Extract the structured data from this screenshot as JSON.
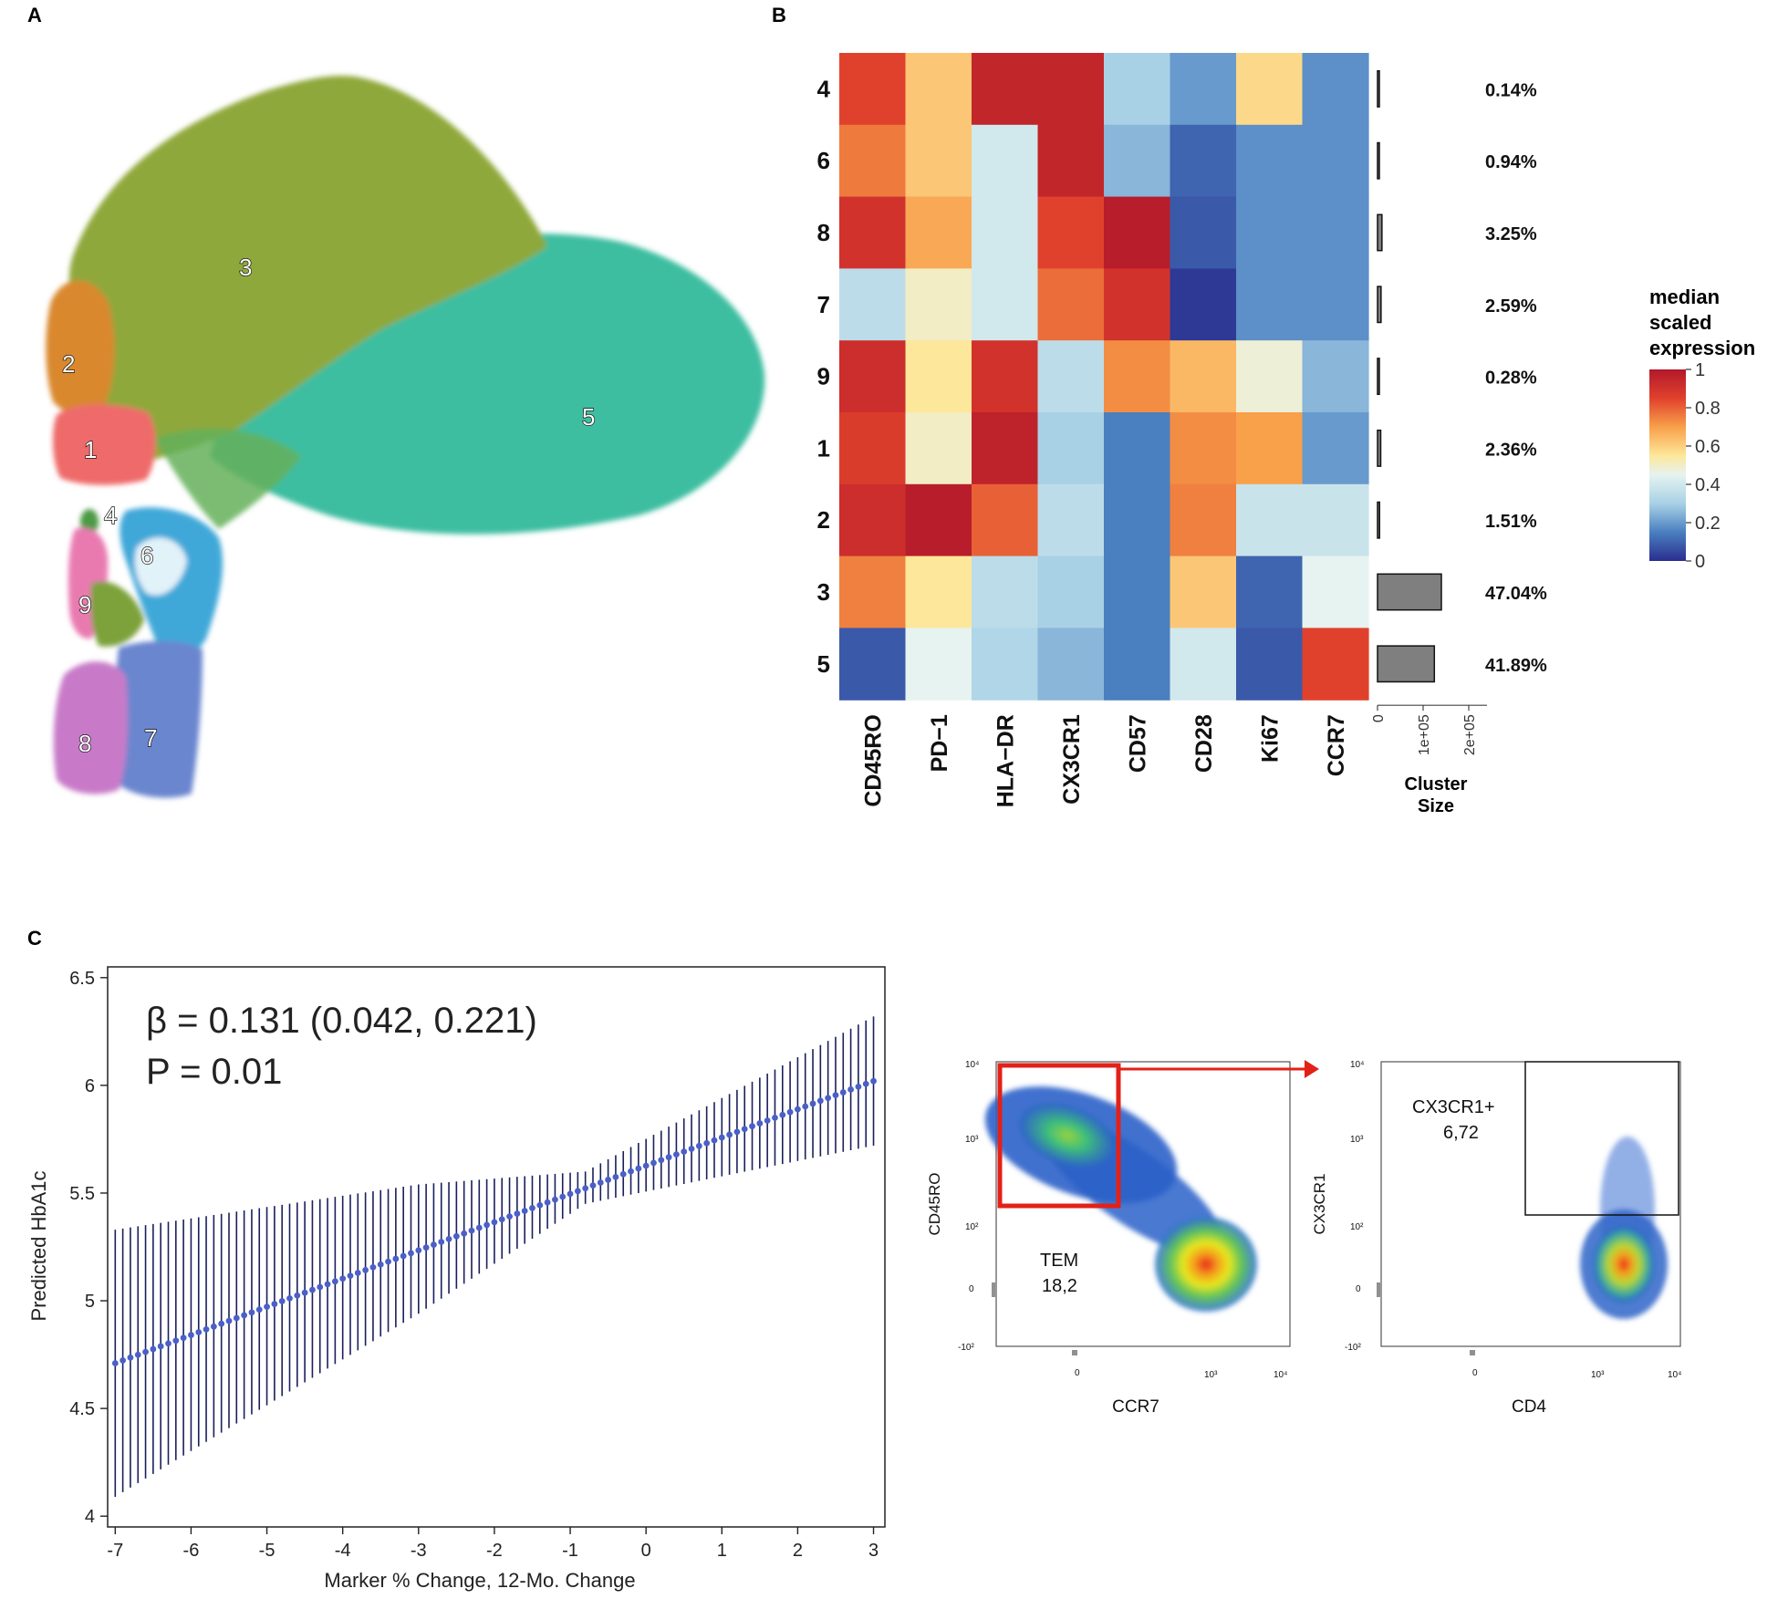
{
  "panels": {
    "a": {
      "label": "A"
    },
    "b": {
      "label": "B"
    },
    "c": {
      "label": "C"
    }
  },
  "chart_data": [
    {
      "panel": "A",
      "type": "scatter",
      "title": "",
      "description": "UMAP embedding colored by cluster",
      "cluster_labels": [
        "1",
        "2",
        "3",
        "4",
        "5",
        "6",
        "7",
        "8",
        "9"
      ],
      "colors": {
        "1": "#ef6a6a",
        "2": "#d9882e",
        "3": "#8fa83a",
        "4": "#5c9e52",
        "5": "#3cbea0",
        "6": "#41a8d8",
        "7": "#6a86cf",
        "8": "#c87ac8",
        "9": "#e97ab0"
      }
    },
    {
      "panel": "B",
      "type": "heatmap",
      "rows": [
        "4",
        "6",
        "8",
        "7",
        "9",
        "1",
        "2",
        "3",
        "5"
      ],
      "columns": [
        "CD45RO",
        "PD−1",
        "HLA−DR",
        "CX3CR1",
        "CD57",
        "CD28",
        "Ki67",
        "CCR7"
      ],
      "values": [
        [
          0.85,
          0.62,
          0.95,
          0.95,
          0.3,
          0.2,
          0.58,
          0.18
        ],
        [
          0.76,
          0.62,
          0.4,
          0.95,
          0.25,
          0.1,
          0.18,
          0.18
        ],
        [
          0.9,
          0.68,
          0.4,
          0.85,
          0.98,
          0.08,
          0.18,
          0.18
        ],
        [
          0.35,
          0.5,
          0.4,
          0.78,
          0.9,
          0.02,
          0.18,
          0.18
        ],
        [
          0.92,
          0.55,
          0.9,
          0.35,
          0.73,
          0.65,
          0.48,
          0.25
        ],
        [
          0.87,
          0.5,
          0.96,
          0.3,
          0.15,
          0.73,
          0.7,
          0.2
        ],
        [
          0.92,
          0.98,
          0.8,
          0.35,
          0.15,
          0.75,
          0.38,
          0.38
        ],
        [
          0.75,
          0.55,
          0.35,
          0.3,
          0.15,
          0.62,
          0.1,
          0.45
        ],
        [
          0.08,
          0.45,
          0.32,
          0.25,
          0.15,
          0.4,
          0.08,
          0.85
        ]
      ],
      "legend": {
        "title_lines": [
          "median",
          "scaled",
          "expression"
        ],
        "ticks": [
          "1",
          "0.8",
          "0.6",
          "0.4",
          "0.2",
          "0"
        ],
        "tick_values": [
          1,
          0.8,
          0.6,
          0.4,
          0.2,
          0
        ]
      },
      "cluster_size": {
        "label_lines": [
          "Cluster",
          "Size"
        ],
        "tick_labels": [
          "0",
          "1e+05",
          "2e+05"
        ],
        "tick_values": [
          0,
          100000,
          200000
        ],
        "xlim": [
          0,
          240000
        ],
        "values": [
          420,
          2800,
          9700,
          7700,
          830,
          7000,
          4500,
          140000,
          124600
        ],
        "percent_labels": [
          "0.14%",
          "0.94%",
          "3.25%",
          "2.59%",
          "0.28%",
          "2.36%",
          "1.51%",
          "47.04%",
          "41.89%"
        ]
      }
    },
    {
      "panel": "C",
      "type": "line",
      "title": "",
      "xlabel": "Marker % Change, 12-Mo. Change",
      "ylabel": "Predicted HbA1c",
      "xlim": [
        -7.1,
        3.15
      ],
      "ylim": [
        3.95,
        6.55
      ],
      "xticks": [
        -7,
        -6,
        -5,
        -4,
        -3,
        -2,
        -1,
        0,
        1,
        2,
        3
      ],
      "xtick_labels": [
        "-7",
        "-6",
        "-5",
        "-4",
        "-3",
        "-2",
        "-1",
        "0",
        "1",
        "2",
        "3"
      ],
      "yticks": [
        4,
        4.5,
        5,
        5.5,
        6,
        6.5
      ],
      "ytick_labels": [
        "4",
        "4.5",
        "5",
        "5.5",
        "6",
        "6.5"
      ],
      "x_start": -7,
      "x_end": 3,
      "n_points": 101,
      "y_start": 4.71,
      "y_end": 6.02,
      "ci_at_x": [
        -7,
        -3,
        -0.8,
        3
      ],
      "ci_lower": [
        4.09,
        4.94,
        5.45,
        5.72
      ],
      "ci_upper": [
        5.33,
        5.54,
        5.6,
        6.32
      ],
      "annotations": [
        "β = 0.131 (0.042, 0.221)",
        "P = 0.01"
      ]
    },
    {
      "panel": "C-flow-left",
      "type": "scatter",
      "xlabel": "CCR7",
      "ylabel": "CD45RO",
      "xtick_labels": [
        "0",
        "10³",
        "10⁴"
      ],
      "ytick_labels": [
        "10⁴",
        "10³",
        "10²",
        "0",
        "-10²"
      ],
      "gate_label": "TEM",
      "gate_value": "18,2"
    },
    {
      "panel": "C-flow-right",
      "type": "scatter",
      "xlabel": "CD4",
      "ylabel": "CX3CR1",
      "xtick_labels": [
        "0",
        "10³",
        "10⁴"
      ],
      "ytick_labels": [
        "10⁴",
        "10³",
        "10²",
        "0",
        "-10²"
      ],
      "gate_label": "CX3CR1+",
      "gate_value": "6,72"
    }
  ]
}
